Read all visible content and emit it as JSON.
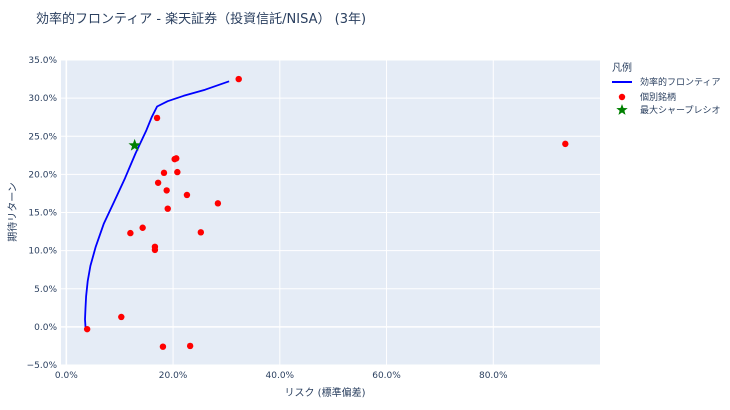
{
  "chart_data": {
    "type": "scatter",
    "title": "効率的フロンティア - 楽天証券（投資信託/NISA） (3年)",
    "xlabel": "リスク (標準偏差)",
    "ylabel": "期待リターン",
    "xlim": [
      -0.01,
      1.0
    ],
    "ylim": [
      -0.05,
      0.35
    ],
    "xticks": [
      0.0,
      0.2,
      0.4,
      0.6,
      0.8
    ],
    "xtick_labels": [
      "0.0%",
      "20.0%",
      "40.0%",
      "60.0%",
      "80.0%"
    ],
    "yticks": [
      -0.05,
      0.0,
      0.05,
      0.1,
      0.15,
      0.2,
      0.25,
      0.3,
      0.35
    ],
    "ytick_labels": [
      "−5.0%",
      "0.0%",
      "5.0%",
      "10.0%",
      "15.0%",
      "20.0%",
      "25.0%",
      "30.0%",
      "35.0%"
    ],
    "grid": true,
    "legend": {
      "title": "凡例",
      "position": "right",
      "entries": [
        "効率的フロンティア",
        "個別銘柄",
        "最大シャープレシオ"
      ]
    },
    "series": [
      {
        "name": "効率的フロンティア",
        "kind": "line",
        "color": "#0000ff",
        "x": [
          0.036,
          0.035,
          0.036,
          0.037,
          0.04,
          0.045,
          0.055,
          0.07,
          0.09,
          0.11,
          0.13,
          0.15,
          0.16,
          0.17,
          0.19,
          0.22,
          0.26,
          0.305
        ],
        "y": [
          0.0,
          0.01,
          0.025,
          0.04,
          0.06,
          0.08,
          0.105,
          0.135,
          0.165,
          0.195,
          0.228,
          0.258,
          0.275,
          0.289,
          0.296,
          0.303,
          0.311,
          0.322
        ]
      },
      {
        "name": "個別銘柄",
        "kind": "scatter",
        "color": "#ff0000",
        "x": [
          0.323,
          0.17,
          0.935,
          0.203,
          0.206,
          0.183,
          0.208,
          0.172,
          0.188,
          0.226,
          0.284,
          0.19,
          0.143,
          0.12,
          0.252,
          0.166,
          0.166,
          0.039,
          0.103,
          0.181,
          0.232
        ],
        "y": [
          0.325,
          0.274,
          0.24,
          0.22,
          0.221,
          0.202,
          0.203,
          0.189,
          0.179,
          0.173,
          0.162,
          0.155,
          0.13,
          0.123,
          0.124,
          0.105,
          0.101,
          -0.003,
          0.013,
          -0.026,
          -0.025
        ]
      },
      {
        "name": "最大シャープレシオ",
        "kind": "marker",
        "color": "#008000",
        "x": [
          0.128
        ],
        "y": [
          0.238
        ]
      }
    ]
  }
}
